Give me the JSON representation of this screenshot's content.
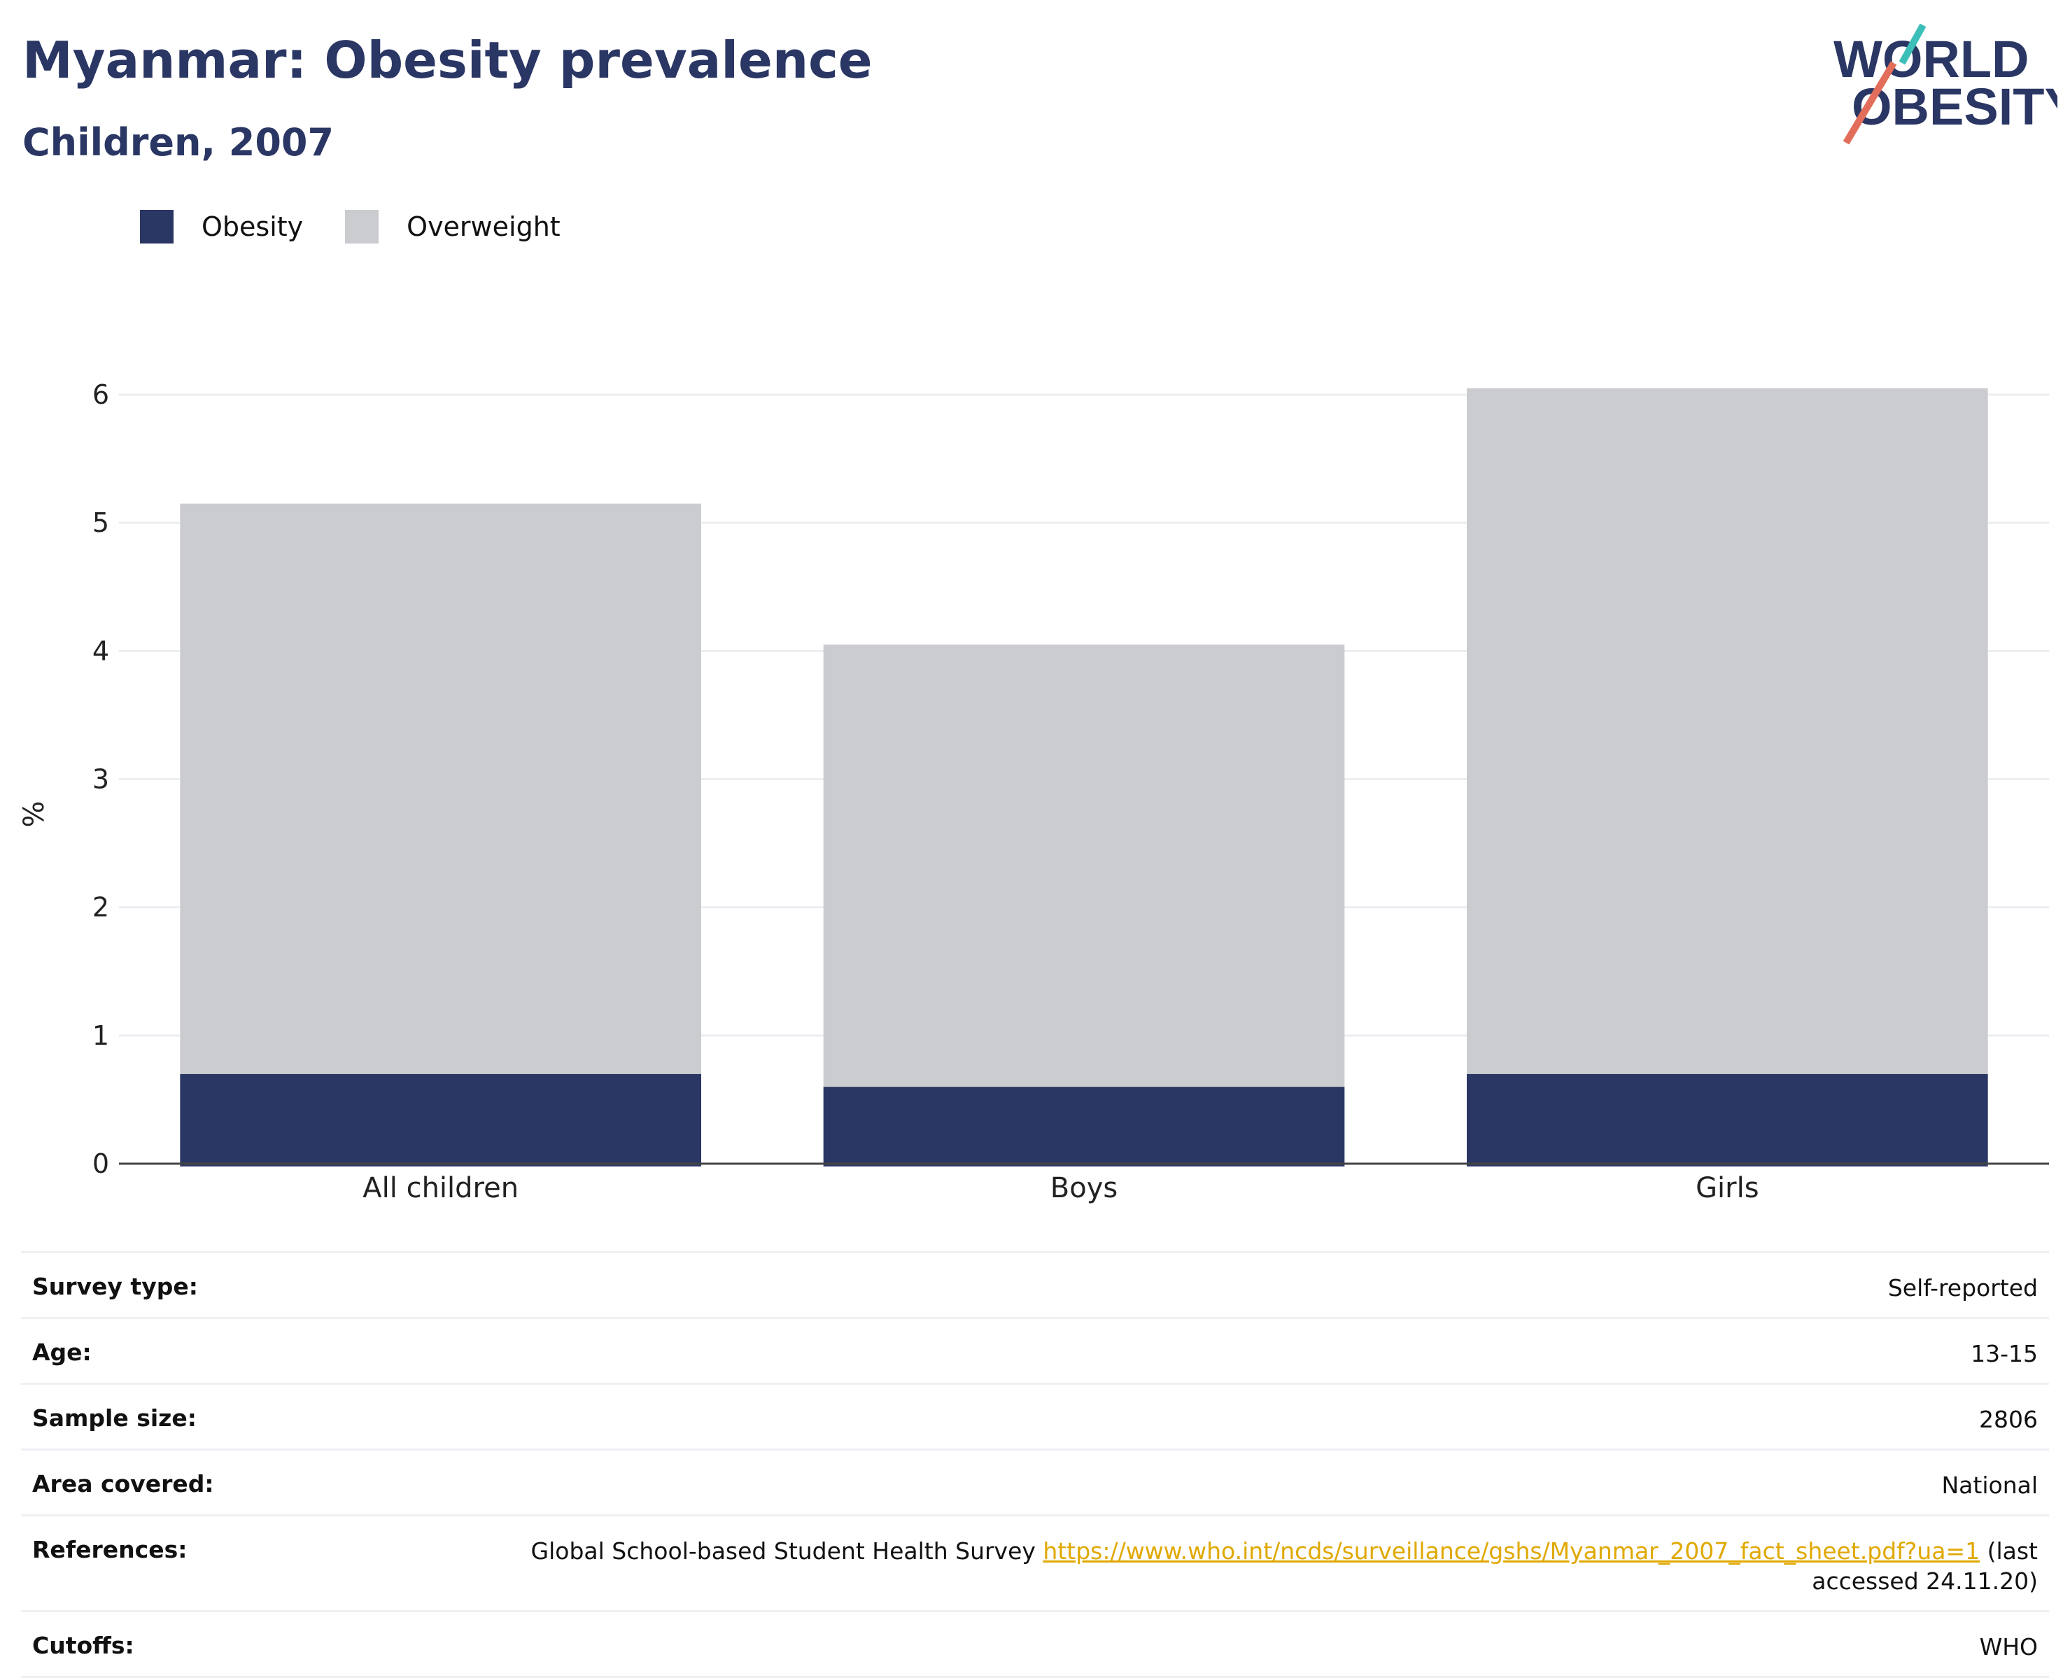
{
  "header": {
    "title": "Myanmar: Obesity prevalence",
    "subtitle": "Children, 2007"
  },
  "logo": {
    "line1": "WORLD",
    "line2": "OBESITY"
  },
  "colors": {
    "obesity": "#2a3663",
    "overweight": "#cacccf",
    "accent": "#2a3663",
    "link": "#e0a800"
  },
  "chart_data": {
    "type": "bar",
    "stacked": true,
    "categories": [
      "All children",
      "Boys",
      "Girls"
    ],
    "series": [
      {
        "name": "Obesity",
        "values": [
          0.7,
          0.6,
          0.7
        ]
      },
      {
        "name": "Overweight",
        "values": [
          4.45,
          3.45,
          5.35
        ]
      }
    ],
    "totals": [
      5.15,
      4.05,
      6.05
    ],
    "ylabel": "%",
    "ylim": [
      0,
      6
    ],
    "yticks": [
      0,
      1,
      2,
      3,
      4,
      5,
      6
    ],
    "grid": true,
    "legend": "top-left"
  },
  "details": [
    {
      "label": "Survey type:",
      "value": "Self-reported"
    },
    {
      "label": "Age:",
      "value": "13-15"
    },
    {
      "label": "Sample size:",
      "value": "2806"
    },
    {
      "label": "Area covered:",
      "value": "National"
    },
    {
      "label": "References:",
      "value_prefix": "Global School-based Student Health Survey ",
      "link": "https://www.who.int/ncds/surveillance/gshs/Myanmar_2007_fact_sheet.pdf?ua=1",
      "value_suffix": " (last accessed 24.11.20)"
    },
    {
      "label": "Cutoffs:",
      "value": "WHO"
    }
  ]
}
